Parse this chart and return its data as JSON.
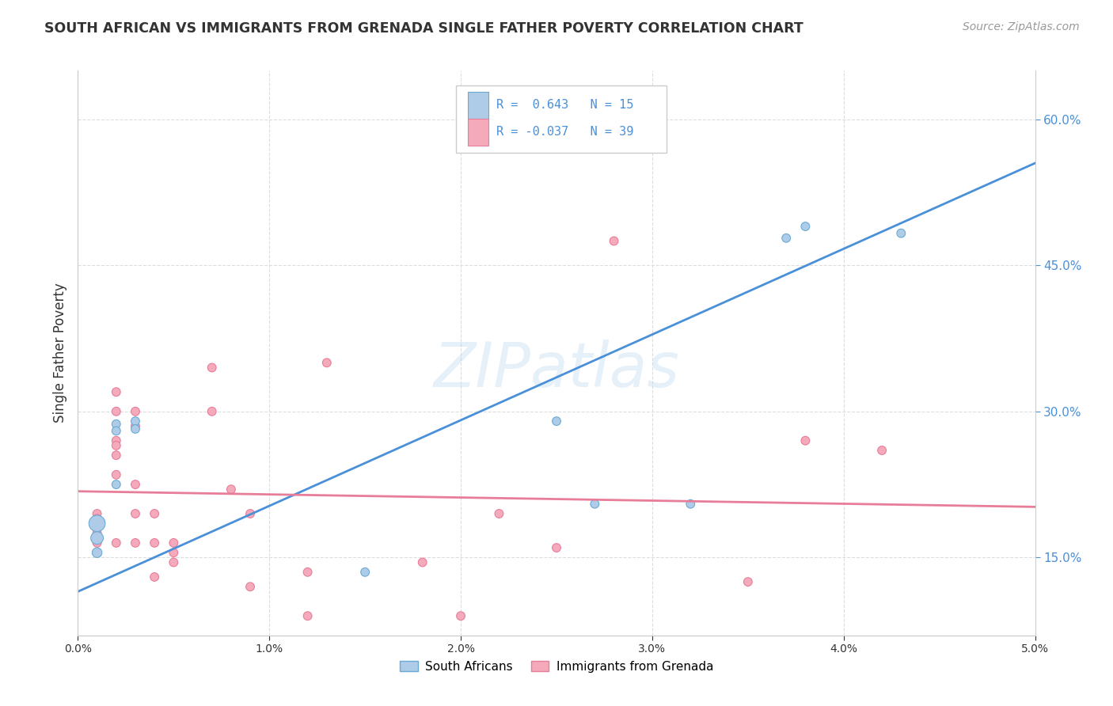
{
  "title": "SOUTH AFRICAN VS IMMIGRANTS FROM GRENADA SINGLE FATHER POVERTY CORRELATION CHART",
  "source": "Source: ZipAtlas.com",
  "ylabel": "Single Father Poverty",
  "y_ticks": [
    0.15,
    0.3,
    0.45,
    0.6
  ],
  "y_tick_labels": [
    "15.0%",
    "30.0%",
    "45.0%",
    "60.0%"
  ],
  "x_ticks": [
    0.0,
    0.01,
    0.02,
    0.03,
    0.04,
    0.05
  ],
  "x_tick_labels": [
    "0.0%",
    "1.0%",
    "2.0%",
    "3.0%",
    "4.0%",
    "5.0%"
  ],
  "blue_label": "South Africans",
  "pink_label": "Immigrants from Grenada",
  "blue_R": 0.643,
  "blue_N": 15,
  "pink_R": -0.037,
  "pink_N": 39,
  "blue_color": "#AECCE8",
  "blue_edge_color": "#6AAAD4",
  "blue_line_color": "#4A90D9",
  "pink_color": "#F5AABB",
  "pink_edge_color": "#E87D9A",
  "pink_line_color": "#E87D9A",
  "blue_scatter_x": [
    0.001,
    0.001,
    0.001,
    0.002,
    0.002,
    0.002,
    0.003,
    0.003,
    0.015,
    0.025,
    0.027,
    0.032,
    0.037,
    0.038,
    0.043
  ],
  "blue_scatter_y": [
    0.185,
    0.17,
    0.155,
    0.225,
    0.287,
    0.28,
    0.29,
    0.282,
    0.135,
    0.29,
    0.205,
    0.205,
    0.478,
    0.49,
    0.483
  ],
  "blue_scatter_sizes": [
    220,
    130,
    80,
    60,
    60,
    60,
    60,
    60,
    60,
    60,
    60,
    60,
    60,
    60,
    60
  ],
  "pink_scatter_x": [
    0.001,
    0.001,
    0.001,
    0.001,
    0.001,
    0.002,
    0.002,
    0.002,
    0.002,
    0.002,
    0.002,
    0.002,
    0.003,
    0.003,
    0.003,
    0.003,
    0.003,
    0.004,
    0.004,
    0.004,
    0.005,
    0.005,
    0.005,
    0.007,
    0.007,
    0.008,
    0.009,
    0.009,
    0.012,
    0.012,
    0.013,
    0.018,
    0.02,
    0.022,
    0.025,
    0.028,
    0.035,
    0.038,
    0.042
  ],
  "pink_scatter_y": [
    0.195,
    0.19,
    0.185,
    0.175,
    0.165,
    0.32,
    0.3,
    0.27,
    0.265,
    0.255,
    0.235,
    0.165,
    0.3,
    0.285,
    0.225,
    0.195,
    0.165,
    0.195,
    0.165,
    0.13,
    0.165,
    0.155,
    0.145,
    0.3,
    0.345,
    0.22,
    0.195,
    0.12,
    0.135,
    0.09,
    0.35,
    0.145,
    0.09,
    0.195,
    0.16,
    0.475,
    0.125,
    0.27,
    0.26
  ],
  "pink_scatter_sizes": [
    60,
    60,
    60,
    60,
    60,
    60,
    60,
    60,
    60,
    60,
    60,
    60,
    60,
    60,
    60,
    60,
    60,
    60,
    60,
    60,
    60,
    60,
    60,
    60,
    60,
    60,
    60,
    60,
    60,
    60,
    60,
    60,
    60,
    60,
    60,
    60,
    60,
    60,
    60
  ],
  "blue_line_x": [
    0.0,
    0.05
  ],
  "blue_line_y": [
    0.115,
    0.555
  ],
  "pink_line_x": [
    0.0,
    0.05
  ],
  "pink_line_y": [
    0.218,
    0.202
  ],
  "watermark": "ZIPatlas",
  "background_color": "#FFFFFF",
  "grid_color": "#DDDDDD",
  "xlim": [
    0.0,
    0.05
  ],
  "ylim": [
    0.07,
    0.65
  ],
  "title_color": "#333333",
  "source_color": "#999999",
  "right_tick_color": "#4A90D9"
}
